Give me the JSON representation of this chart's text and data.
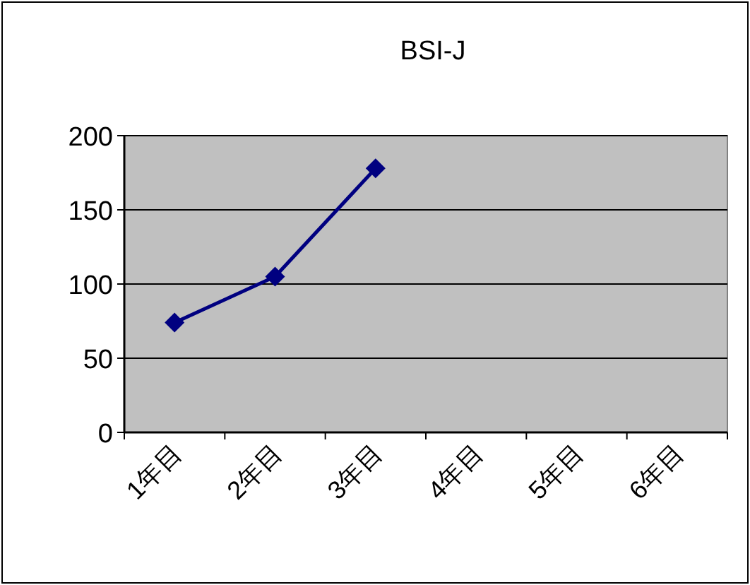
{
  "chart_data": {
    "type": "line",
    "title": "BSI-J",
    "categories": [
      "1年目",
      "2年目",
      "3年目",
      "4年目",
      "5年目",
      "6年目"
    ],
    "series": [
      {
        "color": "#000080",
        "values": [
          74,
          105,
          178,
          null,
          null,
          null
        ]
      }
    ],
    "ylim": [
      0,
      200
    ],
    "yticks": [
      0,
      50,
      100,
      150,
      200
    ],
    "grid": "y",
    "marker": "diamond"
  }
}
